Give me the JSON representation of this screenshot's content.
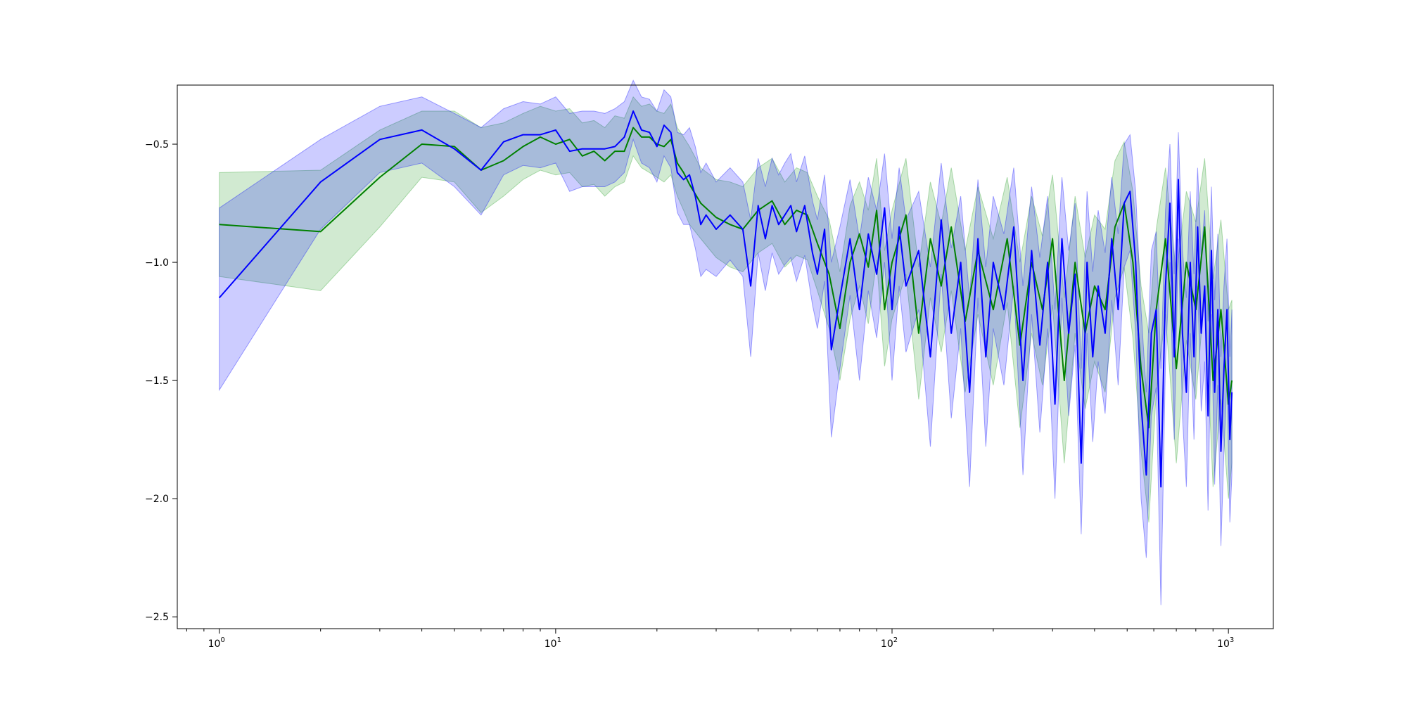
{
  "chart_data": {
    "type": "line",
    "title": "",
    "xlabel": "",
    "ylabel": "",
    "xscale": "log",
    "xlim": [
      0.75,
      1360
    ],
    "ylim": [
      -2.55,
      -0.25
    ],
    "grid": false,
    "legend": "none",
    "x_ticks": [
      {
        "value": 1,
        "base": "10",
        "exp": "0"
      },
      {
        "value": 10,
        "base": "10",
        "exp": "1"
      },
      {
        "value": 100,
        "base": "10",
        "exp": "2"
      },
      {
        "value": 1000,
        "base": "10",
        "exp": "3"
      }
    ],
    "y_ticks": [
      {
        "value": -0.5,
        "label": "−0.5"
      },
      {
        "value": -1.0,
        "label": "−1.0"
      },
      {
        "value": -1.5,
        "label": "−1.5"
      },
      {
        "value": -2.0,
        "label": "−2.0"
      },
      {
        "value": -2.5,
        "label": "−2.5"
      }
    ],
    "series": [
      {
        "color": "#008000",
        "band_color": "#2ca02c",
        "band_opacity": 0.22,
        "x": [
          1,
          2,
          3,
          4,
          5,
          6,
          7,
          8,
          9,
          10,
          11,
          12,
          13,
          14,
          15,
          16,
          17,
          18,
          19,
          20,
          21,
          22,
          23,
          24,
          25,
          27,
          30,
          33,
          36,
          40,
          44,
          48,
          52,
          56,
          60,
          65,
          70,
          75,
          80,
          85,
          90,
          95,
          100,
          110,
          120,
          130,
          140,
          150,
          165,
          180,
          200,
          220,
          240,
          260,
          280,
          300,
          325,
          350,
          375,
          400,
          430,
          460,
          490,
          520,
          550,
          580,
          610,
          650,
          700,
          750,
          800,
          850,
          900,
          950,
          1000,
          1024
        ],
        "y": [
          -0.84,
          -0.87,
          -0.64,
          -0.5,
          -0.51,
          -0.61,
          -0.57,
          -0.51,
          -0.47,
          -0.5,
          -0.48,
          -0.55,
          -0.53,
          -0.57,
          -0.53,
          -0.53,
          -0.43,
          -0.47,
          -0.47,
          -0.5,
          -0.51,
          -0.48,
          -0.58,
          -0.62,
          -0.67,
          -0.75,
          -0.81,
          -0.84,
          -0.86,
          -0.78,
          -0.74,
          -0.84,
          -0.78,
          -0.8,
          -0.92,
          -1.05,
          -1.28,
          -1.0,
          -0.88,
          -1.02,
          -0.78,
          -1.2,
          -1.0,
          -0.8,
          -1.3,
          -0.9,
          -1.1,
          -0.85,
          -1.25,
          -0.95,
          -1.2,
          -0.9,
          -1.35,
          -1.0,
          -1.2,
          -0.9,
          -1.5,
          -1.0,
          -1.3,
          -1.1,
          -1.2,
          -0.85,
          -0.75,
          -1.0,
          -1.45,
          -1.7,
          -1.2,
          -0.9,
          -1.45,
          -1.0,
          -1.2,
          -0.85,
          -1.5,
          -1.2,
          -1.6,
          -1.5
        ],
        "lower": [
          -1.06,
          -1.12,
          -0.85,
          -0.64,
          -0.66,
          -0.79,
          -0.72,
          -0.65,
          -0.61,
          -0.63,
          -0.62,
          -0.68,
          -0.67,
          -0.72,
          -0.68,
          -0.66,
          -0.55,
          -0.6,
          -0.62,
          -0.64,
          -0.66,
          -0.63,
          -0.72,
          -0.78,
          -0.84,
          -0.9,
          -0.98,
          -1.02,
          -1.04,
          -0.96,
          -0.92,
          -1.02,
          -0.97,
          -0.99,
          -1.12,
          -1.28,
          -1.5,
          -1.24,
          -1.1,
          -1.26,
          -0.99,
          -1.44,
          -1.24,
          -1.05,
          -1.58,
          -1.15,
          -1.38,
          -1.12,
          -1.55,
          -1.22,
          -1.52,
          -1.17,
          -1.7,
          -1.3,
          -1.52,
          -1.18,
          -1.85,
          -1.3,
          -1.62,
          -1.42,
          -1.55,
          -1.15,
          -1.02,
          -1.32,
          -1.8,
          -2.1,
          -1.55,
          -1.22,
          -1.85,
          -1.33,
          -1.58,
          -1.13,
          -1.95,
          -1.58,
          -2.0,
          -1.85
        ],
        "upper": [
          -0.62,
          -0.61,
          -0.44,
          -0.36,
          -0.36,
          -0.43,
          -0.41,
          -0.37,
          -0.34,
          -0.36,
          -0.35,
          -0.41,
          -0.4,
          -0.43,
          -0.38,
          -0.39,
          -0.3,
          -0.34,
          -0.33,
          -0.36,
          -0.37,
          -0.33,
          -0.43,
          -0.47,
          -0.51,
          -0.6,
          -0.65,
          -0.66,
          -0.68,
          -0.6,
          -0.56,
          -0.66,
          -0.6,
          -0.62,
          -0.72,
          -0.82,
          -1.04,
          -0.76,
          -0.66,
          -0.78,
          -0.56,
          -0.95,
          -0.78,
          -0.56,
          -1.02,
          -0.66,
          -0.84,
          -0.6,
          -0.95,
          -0.68,
          -0.9,
          -0.64,
          -1.0,
          -0.72,
          -0.89,
          -0.63,
          -1.15,
          -0.72,
          -0.98,
          -0.8,
          -0.86,
          -0.57,
          -0.49,
          -0.7,
          -1.1,
          -1.3,
          -0.86,
          -0.6,
          -1.05,
          -0.7,
          -0.83,
          -0.56,
          -1.07,
          -0.82,
          -1.2,
          -1.16
        ]
      },
      {
        "color": "#0000ff",
        "band_color": "#0000ff",
        "band_opacity": 0.2,
        "x": [
          1,
          2,
          3,
          4,
          5,
          6,
          7,
          8,
          9,
          10,
          11,
          12,
          13,
          14,
          15,
          16,
          17,
          18,
          19,
          20,
          21,
          22,
          23,
          24,
          25,
          26,
          27,
          28,
          30,
          33,
          36,
          38,
          40,
          42,
          44,
          46,
          48,
          50,
          52,
          55,
          58,
          60,
          63,
          66,
          70,
          75,
          80,
          85,
          90,
          95,
          100,
          105,
          110,
          120,
          130,
          140,
          150,
          160,
          170,
          180,
          190,
          200,
          215,
          230,
          245,
          260,
          275,
          290,
          305,
          320,
          335,
          350,
          365,
          380,
          395,
          410,
          430,
          450,
          470,
          490,
          510,
          530,
          550,
          570,
          590,
          610,
          630,
          650,
          670,
          690,
          710,
          730,
          750,
          770,
          790,
          810,
          830,
          850,
          870,
          890,
          910,
          930,
          950,
          970,
          990,
          1010,
          1024
        ],
        "y": [
          -1.15,
          -0.66,
          -0.48,
          -0.44,
          -0.52,
          -0.61,
          -0.49,
          -0.46,
          -0.46,
          -0.44,
          -0.53,
          -0.52,
          -0.52,
          -0.52,
          -0.51,
          -0.47,
          -0.36,
          -0.44,
          -0.45,
          -0.51,
          -0.42,
          -0.45,
          -0.62,
          -0.65,
          -0.63,
          -0.72,
          -0.84,
          -0.8,
          -0.86,
          -0.8,
          -0.86,
          -1.1,
          -0.76,
          -0.9,
          -0.76,
          -0.84,
          -0.8,
          -0.76,
          -0.87,
          -0.76,
          -0.96,
          -1.05,
          -0.86,
          -1.37,
          -1.15,
          -0.9,
          -1.2,
          -0.88,
          -1.05,
          -0.77,
          -1.2,
          -0.85,
          -1.1,
          -0.95,
          -1.4,
          -0.82,
          -1.3,
          -1.0,
          -1.55,
          -0.9,
          -1.4,
          -1.0,
          -1.2,
          -0.85,
          -1.5,
          -0.95,
          -1.35,
          -1.0,
          -1.6,
          -0.9,
          -1.3,
          -1.05,
          -1.85,
          -1.0,
          -1.4,
          -1.1,
          -1.3,
          -0.9,
          -1.2,
          -0.75,
          -0.7,
          -1.0,
          -1.6,
          -1.9,
          -1.3,
          -1.2,
          -1.95,
          -1.1,
          -0.75,
          -1.4,
          -0.65,
          -1.3,
          -1.55,
          -1.0,
          -1.4,
          -0.85,
          -1.3,
          -1.1,
          -1.65,
          -0.95,
          -1.55,
          -1.2,
          -1.8,
          -1.45,
          -1.2,
          -1.75,
          -1.55
        ],
        "lower": [
          -1.54,
          -0.86,
          -0.62,
          -0.58,
          -0.68,
          -0.8,
          -0.63,
          -0.59,
          -0.6,
          -0.58,
          -0.7,
          -0.68,
          -0.68,
          -0.68,
          -0.66,
          -0.62,
          -0.48,
          -0.58,
          -0.6,
          -0.66,
          -0.55,
          -0.6,
          -0.79,
          -0.84,
          -0.84,
          -0.94,
          -1.06,
          -1.03,
          -1.06,
          -0.99,
          -1.06,
          -1.4,
          -0.96,
          -1.12,
          -0.96,
          -1.05,
          -1.01,
          -0.98,
          -1.08,
          -0.97,
          -1.18,
          -1.28,
          -1.08,
          -1.74,
          -1.45,
          -1.14,
          -1.5,
          -1.12,
          -1.32,
          -1.0,
          -1.5,
          -1.1,
          -1.38,
          -1.2,
          -1.78,
          -1.05,
          -1.66,
          -1.28,
          -1.95,
          -1.15,
          -1.78,
          -1.28,
          -1.52,
          -1.1,
          -1.9,
          -1.22,
          -1.72,
          -1.28,
          -2.0,
          -1.15,
          -1.65,
          -1.35,
          -2.15,
          -1.3,
          -1.76,
          -1.42,
          -1.64,
          -1.16,
          -1.52,
          -1.02,
          -0.95,
          -1.3,
          -2.0,
          -2.25,
          -1.65,
          -1.53,
          -2.45,
          -1.42,
          -1.0,
          -1.75,
          -0.9,
          -1.65,
          -1.95,
          -1.3,
          -1.75,
          -1.1,
          -1.63,
          -1.42,
          -2.05,
          -1.22,
          -1.94,
          -1.52,
          -2.2,
          -1.8,
          -1.5,
          -2.1,
          -1.9
        ],
        "upper": [
          -0.77,
          -0.48,
          -0.34,
          -0.3,
          -0.37,
          -0.43,
          -0.35,
          -0.32,
          -0.33,
          -0.3,
          -0.37,
          -0.36,
          -0.36,
          -0.37,
          -0.35,
          -0.32,
          -0.23,
          -0.3,
          -0.31,
          -0.36,
          -0.27,
          -0.3,
          -0.45,
          -0.46,
          -0.43,
          -0.51,
          -0.62,
          -0.58,
          -0.66,
          -0.6,
          -0.66,
          -0.82,
          -0.56,
          -0.68,
          -0.56,
          -0.63,
          -0.58,
          -0.54,
          -0.66,
          -0.55,
          -0.74,
          -0.82,
          -0.63,
          -1.0,
          -0.85,
          -0.65,
          -0.9,
          -0.64,
          -0.78,
          -0.54,
          -0.9,
          -0.6,
          -0.82,
          -0.7,
          -1.02,
          -0.58,
          -0.94,
          -0.72,
          -1.15,
          -0.65,
          -1.02,
          -0.72,
          -0.88,
          -0.6,
          -1.1,
          -0.68,
          -0.98,
          -0.72,
          -1.2,
          -0.64,
          -0.95,
          -0.75,
          -1.45,
          -0.7,
          -1.04,
          -0.78,
          -0.96,
          -0.64,
          -0.88,
          -0.5,
          -0.46,
          -0.7,
          -1.2,
          -1.55,
          -0.95,
          -0.87,
          -1.45,
          -0.78,
          -0.5,
          -1.05,
          -0.45,
          -0.95,
          -1.15,
          -0.7,
          -1.05,
          -0.6,
          -0.97,
          -0.78,
          -1.25,
          -0.68,
          -1.16,
          -0.88,
          -1.4,
          -1.1,
          -0.9,
          -1.4,
          -1.2
        ]
      }
    ]
  }
}
